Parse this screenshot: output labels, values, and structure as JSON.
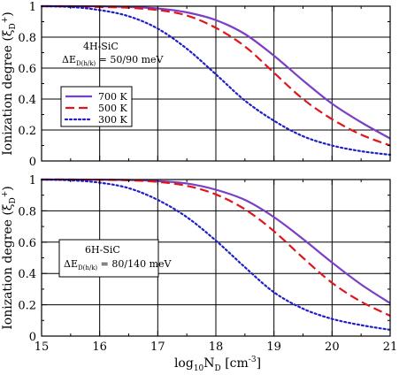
{
  "chart_data": [
    {
      "type": "line",
      "ylabel": "Ionization degree (ξ_D^+)",
      "xlim": [
        15,
        21
      ],
      "ylim": [
        0,
        1
      ],
      "yticks": [
        "0",
        "0.2",
        "0.4",
        "0.6",
        "0.8",
        "1"
      ],
      "xticks": [
        "15",
        "16",
        "17",
        "18",
        "19",
        "20",
        "21"
      ],
      "grid": true,
      "annotation": {
        "line1": "4H-SiC",
        "line2_prefix": "ΔE",
        "line2_sub": "D(h/k)",
        "line2_suffix": " = 50/90 meV"
      },
      "legend": {
        "placement": "middle-left",
        "entries": [
          "700 K",
          "500 K",
          "300 K"
        ]
      },
      "x": [
        15,
        15.5,
        16,
        16.5,
        17,
        17.5,
        18,
        18.5,
        19,
        19.5,
        20,
        20.5,
        21
      ],
      "series": [
        {
          "name": "700 K",
          "color": "#7b3fc6",
          "dash": "solid",
          "values": [
            1.0,
            1.0,
            0.999,
            0.995,
            0.985,
            0.96,
            0.91,
            0.82,
            0.68,
            0.52,
            0.37,
            0.25,
            0.145
          ]
        },
        {
          "name": "500 K",
          "color": "#e0161d",
          "dash": "dashed",
          "values": [
            1.0,
            0.999,
            0.995,
            0.99,
            0.975,
            0.94,
            0.86,
            0.74,
            0.57,
            0.4,
            0.27,
            0.17,
            0.1
          ]
        },
        {
          "name": "300 K",
          "color": "#1f1fc8",
          "dash": "dotted",
          "values": [
            1.0,
            0.995,
            0.975,
            0.935,
            0.855,
            0.725,
            0.56,
            0.39,
            0.26,
            0.16,
            0.1,
            0.063,
            0.04
          ]
        }
      ]
    },
    {
      "type": "line",
      "xlabel_base": "log",
      "xlabel_sub": "10",
      "xlabel_var": "N",
      "xlabel_var_sub": "D",
      "xlabel_unit": " [cm",
      "xlabel_unit_sup": "-3",
      "xlabel_close": "]",
      "ylabel": "Ionization degree (ξ_D^+)",
      "xlim": [
        15,
        21
      ],
      "ylim": [
        0,
        1
      ],
      "yticks": [
        "0",
        "0.2",
        "0.4",
        "0.6",
        "0.8",
        "1"
      ],
      "xticks": [
        "15",
        "16",
        "17",
        "18",
        "19",
        "20",
        "21"
      ],
      "grid": true,
      "annotation": {
        "line1": "6H-SiC",
        "line2_prefix": "ΔE",
        "line2_sub": "D(h/k)",
        "line2_suffix": " = 80/140 meV"
      },
      "x": [
        15,
        15.5,
        16,
        16.5,
        17,
        17.5,
        18,
        18.5,
        19,
        19.5,
        20,
        20.5,
        21
      ],
      "series": [
        {
          "name": "700 K",
          "color": "#7b3fc6",
          "dash": "solid",
          "values": [
            1.0,
            1.0,
            0.999,
            0.997,
            0.99,
            0.975,
            0.935,
            0.87,
            0.76,
            0.62,
            0.47,
            0.33,
            0.21
          ]
        },
        {
          "name": "500 K",
          "color": "#e0161d",
          "dash": "dashed",
          "values": [
            1.0,
            1.0,
            0.998,
            0.995,
            0.985,
            0.96,
            0.905,
            0.81,
            0.67,
            0.5,
            0.34,
            0.22,
            0.13
          ]
        },
        {
          "name": "300 K",
          "color": "#1f1fc8",
          "dash": "dotted",
          "values": [
            1.0,
            0.995,
            0.98,
            0.945,
            0.87,
            0.76,
            0.61,
            0.44,
            0.28,
            0.175,
            0.11,
            0.07,
            0.04
          ]
        }
      ]
    }
  ]
}
